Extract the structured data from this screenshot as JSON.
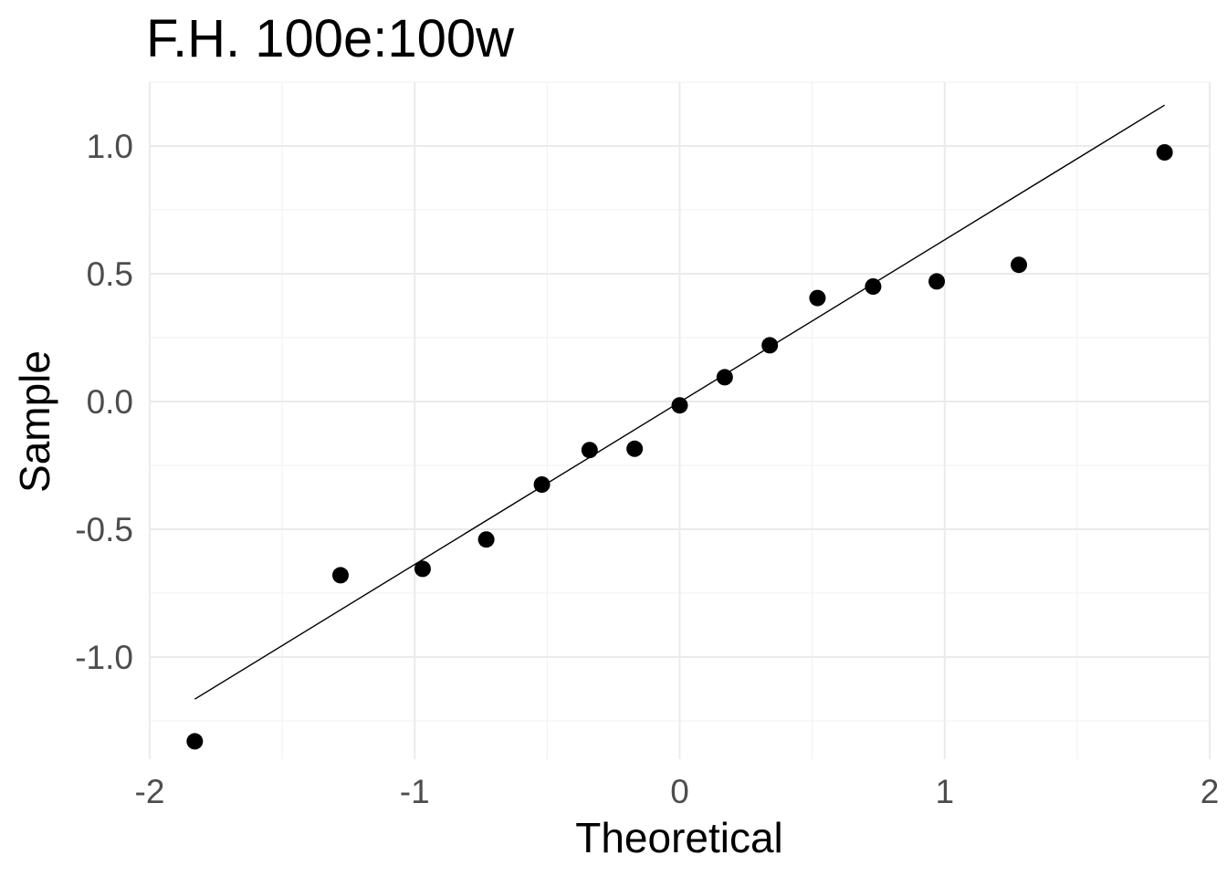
{
  "chart_data": {
    "type": "scatter",
    "title": "F.H. 100e:100w",
    "xlabel": "Theoretical",
    "ylabel": "Sample",
    "xlim": [
      -2,
      2
    ],
    "ylim": [
      -1.4,
      1.25
    ],
    "x_ticks": [
      -2,
      -1,
      0,
      1,
      2
    ],
    "x_tick_labels": [
      "-2",
      "-1",
      "0",
      "1",
      "2"
    ],
    "y_ticks": [
      -1.0,
      -0.5,
      0.0,
      0.5,
      1.0
    ],
    "y_tick_labels": [
      "-1.0",
      "-0.5",
      "0.0",
      "0.5",
      "1.0"
    ],
    "grid": true,
    "points": [
      {
        "x": -1.83,
        "y": -1.33
      },
      {
        "x": -1.28,
        "y": -0.68
      },
      {
        "x": -0.97,
        "y": -0.655
      },
      {
        "x": -0.73,
        "y": -0.54
      },
      {
        "x": -0.52,
        "y": -0.325
      },
      {
        "x": -0.34,
        "y": -0.19
      },
      {
        "x": -0.17,
        "y": -0.185
      },
      {
        "x": 0.0,
        "y": -0.015
      },
      {
        "x": 0.17,
        "y": 0.095
      },
      {
        "x": 0.34,
        "y": 0.22
      },
      {
        "x": 0.52,
        "y": 0.405
      },
      {
        "x": 0.73,
        "y": 0.45
      },
      {
        "x": 0.97,
        "y": 0.47
      },
      {
        "x": 1.28,
        "y": 0.535
      },
      {
        "x": 1.83,
        "y": 0.975
      }
    ],
    "reference_line": {
      "x": [
        -1.83,
        1.83
      ],
      "y": [
        -1.165,
        1.16
      ]
    },
    "point_color": "#000000",
    "line_color": "#000000"
  }
}
